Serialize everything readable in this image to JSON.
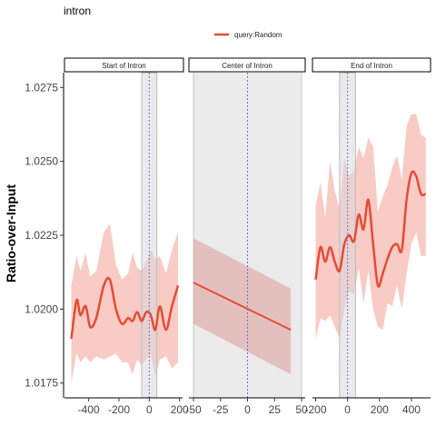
{
  "plot_title": "intron",
  "legend": {
    "label": "query:Random",
    "placement": "top"
  },
  "colors": {
    "line": "#e64b35",
    "ribbon": "#f4a99e",
    "ribbon_center": "#d98c87",
    "window_band": "#d9d9d9",
    "center_panel_bg": "#ebebeb",
    "vline": "#7b68ee"
  },
  "chart_data": {
    "type": "line",
    "title": "intron",
    "ylabel": "Ratio-over-Input",
    "ylim": [
      1.017,
      1.028
    ],
    "yticks": [
      1.0175,
      1.02,
      1.0225,
      1.025,
      1.0275
    ],
    "ytick_labels": [
      "1.0175",
      "1.0200",
      "1.0225",
      "1.0250",
      "1.0275"
    ],
    "grid": false,
    "facets": [
      {
        "name": "Start of Intron",
        "xlim": [
          -560,
          220
        ],
        "xticks": [
          -400,
          -200,
          0,
          200
        ],
        "xtick_labels": [
          "-400",
          "-200",
          "0",
          "200"
        ],
        "band": [
          -50,
          50
        ],
        "vline": 0,
        "series": [
          {
            "name": "query:Random",
            "x": [
              -515,
              -480,
              -455,
              -420,
              -390,
              -350,
              -300,
              -260,
              -220,
              -180,
              -140,
              -110,
              -80,
              -50,
              -20,
              10,
              40,
              70,
              110,
              150,
              190
            ],
            "y": [
              1.019,
              1.0203,
              1.0198,
              1.0201,
              1.0194,
              1.0197,
              1.0208,
              1.021,
              1.02,
              1.0195,
              1.0197,
              1.0196,
              1.0199,
              1.0196,
              1.0199,
              1.0198,
              1.0193,
              1.0201,
              1.0193,
              1.0201,
              1.0208
            ],
            "lower": [
              1.0175,
              1.0185,
              1.0182,
              1.0184,
              1.0182,
              1.0184,
              1.0183,
              1.0184,
              1.0185,
              1.0182,
              1.0182,
              1.0178,
              1.0183,
              1.0181,
              1.0183,
              1.0185,
              1.0177,
              1.0183,
              1.0184,
              1.018,
              1.0182
            ],
            "upper": [
              1.0208,
              1.0218,
              1.0213,
              1.0219,
              1.0211,
              1.0213,
              1.0226,
              1.0229,
              1.0215,
              1.021,
              1.0212,
              1.0219,
              1.0214,
              1.0213,
              1.0216,
              1.022,
              1.0217,
              1.0218,
              1.0212,
              1.022,
              1.0226
            ]
          }
        ]
      },
      {
        "name": "Center of Intron",
        "xlim": [
          -50,
          50
        ],
        "xticks": [
          -50,
          -25,
          0,
          25,
          50
        ],
        "xtick_labels": [
          "-50",
          "-25",
          "0",
          "25",
          "50"
        ],
        "band": [
          -50,
          50
        ],
        "vline": 0,
        "series": [
          {
            "name": "query:Random",
            "x": [
              -50,
              40
            ],
            "y": [
              1.0209,
              1.0193
            ],
            "lower": [
              1.0195,
              1.0178
            ],
            "upper": [
              1.0224,
              1.0207
            ]
          }
        ]
      },
      {
        "name": "End of Intron",
        "xlim": [
          -220,
          520
        ],
        "xticks": [
          -200,
          0,
          200,
          400
        ],
        "xtick_labels": [
          "-200",
          "0",
          "200",
          "400"
        ],
        "band": [
          -50,
          50
        ],
        "vline": 0,
        "series": [
          {
            "name": "query:Random",
            "x": [
              -200,
              -170,
              -140,
              -110,
              -80,
              -50,
              -20,
              10,
              40,
              70,
              100,
              130,
              160,
              190,
              220,
              250,
              280,
              310,
              340,
              370,
              400,
              430,
              460,
              490
            ],
            "y": [
              1.021,
              1.0221,
              1.0216,
              1.0221,
              1.0216,
              1.0213,
              1.0222,
              1.0225,
              1.0223,
              1.0232,
              1.0227,
              1.0237,
              1.0222,
              1.0208,
              1.0212,
              1.0217,
              1.0221,
              1.0222,
              1.022,
              1.0237,
              1.0246,
              1.0245,
              1.0239,
              1.0239
            ],
            "lower": [
              1.019,
              1.0197,
              1.0196,
              1.0198,
              1.0194,
              1.019,
              1.02,
              1.0206,
              1.0205,
              1.0214,
              1.0202,
              1.0213,
              1.02,
              1.0194,
              1.0193,
              1.0202,
              1.0201,
              1.0208,
              1.02,
              1.0212,
              1.0222,
              1.0226,
              1.0218,
              1.0218
            ],
            "upper": [
              1.0235,
              1.0243,
              1.0231,
              1.025,
              1.024,
              1.0234,
              1.0251,
              1.0245,
              1.0247,
              1.0255,
              1.0251,
              1.0258,
              1.0255,
              1.0233,
              1.0238,
              1.0242,
              1.0248,
              1.0252,
              1.0244,
              1.0262,
              1.0266,
              1.0266,
              1.0259,
              1.0258
            ]
          }
        ]
      }
    ]
  }
}
